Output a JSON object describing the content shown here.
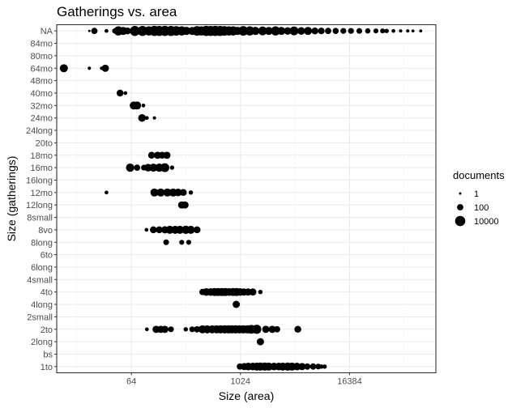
{
  "chart_data": {
    "type": "scatter",
    "title": "Gatherings vs. area",
    "xlabel": "Size (area)",
    "ylabel": "Size (gatherings)",
    "x_scale": "log2",
    "xlim": [
      9.6,
      147000
    ],
    "x_ticks": [
      64,
      1024,
      16384
    ],
    "x_tick_labels": [
      "64",
      "1024",
      "16384"
    ],
    "categories": [
      "1to",
      "bs",
      "2long",
      "2to",
      "2small",
      "4long",
      "4to",
      "4small",
      "6long",
      "6to",
      "8long",
      "8vo",
      "8small",
      "12long",
      "12mo",
      "16long",
      "16mo",
      "18mo",
      "20to",
      "24long",
      "24mo",
      "32mo",
      "40mo",
      "48mo",
      "64mo",
      "80mo",
      "84mo",
      "NA"
    ],
    "grid": true,
    "legend": {
      "title": "documents",
      "position": "right",
      "entries": [
        {
          "label": "1",
          "value": 1
        },
        {
          "label": "100",
          "value": 100
        },
        {
          "label": "10000",
          "value": 10000
        }
      ]
    },
    "point_color": "#000000",
    "points": [
      {
        "y": "NA",
        "x": 22,
        "n": 1
      },
      {
        "y": "NA",
        "x": 25,
        "n": 100
      },
      {
        "y": "NA",
        "x": 34,
        "n": 5
      },
      {
        "y": "NA",
        "x": 42,
        "n": 30
      },
      {
        "y": "NA",
        "x": 46,
        "n": 3000
      },
      {
        "y": "NA",
        "x": 52,
        "n": 800
      },
      {
        "y": "NA",
        "x": 58,
        "n": 200
      },
      {
        "y": "NA",
        "x": 70,
        "n": 8000
      },
      {
        "y": "NA",
        "x": 85,
        "n": 8000
      },
      {
        "y": "NA",
        "x": 100,
        "n": 3000
      },
      {
        "y": "NA",
        "x": 115,
        "n": 10000
      },
      {
        "y": "NA",
        "x": 130,
        "n": 8000
      },
      {
        "y": "NA",
        "x": 150,
        "n": 10000
      },
      {
        "y": "NA",
        "x": 175,
        "n": 8000
      },
      {
        "y": "NA",
        "x": 200,
        "n": 5000
      },
      {
        "y": "NA",
        "x": 230,
        "n": 3000
      },
      {
        "y": "NA",
        "x": 260,
        "n": 1000
      },
      {
        "y": "NA",
        "x": 300,
        "n": 800
      },
      {
        "y": "NA",
        "x": 340,
        "n": 5000
      },
      {
        "y": "NA",
        "x": 380,
        "n": 3000
      },
      {
        "y": "NA",
        "x": 430,
        "n": 10000
      },
      {
        "y": "NA",
        "x": 480,
        "n": 8000
      },
      {
        "y": "NA",
        "x": 540,
        "n": 10000
      },
      {
        "y": "NA",
        "x": 610,
        "n": 8000
      },
      {
        "y": "NA",
        "x": 680,
        "n": 5000
      },
      {
        "y": "NA",
        "x": 760,
        "n": 3000
      },
      {
        "y": "NA",
        "x": 850,
        "n": 3000
      },
      {
        "y": "NA",
        "x": 950,
        "n": 1000
      },
      {
        "y": "NA",
        "x": 1100,
        "n": 5000
      },
      {
        "y": "NA",
        "x": 1300,
        "n": 3000
      },
      {
        "y": "NA",
        "x": 1500,
        "n": 1000
      },
      {
        "y": "NA",
        "x": 1800,
        "n": 2000
      },
      {
        "y": "NA",
        "x": 2100,
        "n": 800
      },
      {
        "y": "NA",
        "x": 2500,
        "n": 3000
      },
      {
        "y": "NA",
        "x": 2900,
        "n": 800
      },
      {
        "y": "NA",
        "x": 3400,
        "n": 400
      },
      {
        "y": "NA",
        "x": 4000,
        "n": 2000
      },
      {
        "y": "NA",
        "x": 4800,
        "n": 500
      },
      {
        "y": "NA",
        "x": 5700,
        "n": 800
      },
      {
        "y": "NA",
        "x": 6800,
        "n": 200
      },
      {
        "y": "NA",
        "x": 8000,
        "n": 150
      },
      {
        "y": "NA",
        "x": 9500,
        "n": 100
      },
      {
        "y": "NA",
        "x": 11500,
        "n": 80
      },
      {
        "y": "NA",
        "x": 14000,
        "n": 60
      },
      {
        "y": "NA",
        "x": 17000,
        "n": 60
      },
      {
        "y": "NA",
        "x": 21000,
        "n": 50
      },
      {
        "y": "NA",
        "x": 26000,
        "n": 30
      },
      {
        "y": "NA",
        "x": 32000,
        "n": 20
      },
      {
        "y": "NA",
        "x": 38000,
        "n": 20
      },
      {
        "y": "NA",
        "x": 42000,
        "n": 10
      },
      {
        "y": "NA",
        "x": 50000,
        "n": 5
      },
      {
        "y": "NA",
        "x": 60000,
        "n": 3
      },
      {
        "y": "NA",
        "x": 72000,
        "n": 3
      },
      {
        "y": "NA",
        "x": 82000,
        "n": 2
      },
      {
        "y": "NA",
        "x": 100000,
        "n": 2
      },
      {
        "y": "64mo",
        "x": 11.5,
        "n": 800
      },
      {
        "y": "64mo",
        "x": 22,
        "n": 3
      },
      {
        "y": "64mo",
        "x": 30,
        "n": 3
      },
      {
        "y": "64mo",
        "x": 33,
        "n": 300
      },
      {
        "y": "40mo",
        "x": 48,
        "n": 200
      },
      {
        "y": "40mo",
        "x": 55,
        "n": 5
      },
      {
        "y": "32mo",
        "x": 68,
        "n": 800
      },
      {
        "y": "32mo",
        "x": 74,
        "n": 800
      },
      {
        "y": "32mo",
        "x": 87,
        "n": 5
      },
      {
        "y": "24mo",
        "x": 84,
        "n": 500
      },
      {
        "y": "24mo",
        "x": 95,
        "n": 5
      },
      {
        "y": "24mo",
        "x": 115,
        "n": 3
      },
      {
        "y": "18mo",
        "x": 107,
        "n": 200
      },
      {
        "y": "18mo",
        "x": 125,
        "n": 300
      },
      {
        "y": "18mo",
        "x": 140,
        "n": 200
      },
      {
        "y": "18mo",
        "x": 158,
        "n": 300
      },
      {
        "y": "16mo",
        "x": 62,
        "n": 1000
      },
      {
        "y": "16mo",
        "x": 74,
        "n": 100
      },
      {
        "y": "16mo",
        "x": 88,
        "n": 50
      },
      {
        "y": "16mo",
        "x": 98,
        "n": 500
      },
      {
        "y": "16mo",
        "x": 112,
        "n": 800
      },
      {
        "y": "16mo",
        "x": 130,
        "n": 1000
      },
      {
        "y": "16mo",
        "x": 150,
        "n": 2000
      },
      {
        "y": "16mo",
        "x": 180,
        "n": 10
      },
      {
        "y": "12mo",
        "x": 34,
        "n": 5
      },
      {
        "y": "12mo",
        "x": 115,
        "n": 800
      },
      {
        "y": "12mo",
        "x": 135,
        "n": 800
      },
      {
        "y": "12mo",
        "x": 160,
        "n": 800
      },
      {
        "y": "12mo",
        "x": 185,
        "n": 800
      },
      {
        "y": "12mo",
        "x": 210,
        "n": 500
      },
      {
        "y": "12mo",
        "x": 240,
        "n": 200
      },
      {
        "y": "12mo",
        "x": 290,
        "n": 10
      },
      {
        "y": "12long",
        "x": 230,
        "n": 300
      },
      {
        "y": "12long",
        "x": 250,
        "n": 300
      },
      {
        "y": "8vo",
        "x": 94,
        "n": 5
      },
      {
        "y": "8vo",
        "x": 112,
        "n": 200
      },
      {
        "y": "8vo",
        "x": 130,
        "n": 200
      },
      {
        "y": "8vo",
        "x": 150,
        "n": 300
      },
      {
        "y": "8vo",
        "x": 170,
        "n": 800
      },
      {
        "y": "8vo",
        "x": 195,
        "n": 800
      },
      {
        "y": "8vo",
        "x": 220,
        "n": 800
      },
      {
        "y": "8vo",
        "x": 255,
        "n": 1000
      },
      {
        "y": "8vo",
        "x": 290,
        "n": 800
      },
      {
        "y": "8vo",
        "x": 340,
        "n": 200
      },
      {
        "y": "8long",
        "x": 155,
        "n": 50
      },
      {
        "y": "8long",
        "x": 230,
        "n": 20
      },
      {
        "y": "8long",
        "x": 275,
        "n": 20
      },
      {
        "y": "4to",
        "x": 390,
        "n": 100
      },
      {
        "y": "4to",
        "x": 430,
        "n": 500
      },
      {
        "y": "4to",
        "x": 480,
        "n": 500
      },
      {
        "y": "4to",
        "x": 530,
        "n": 800
      },
      {
        "y": "4to",
        "x": 580,
        "n": 800
      },
      {
        "y": "4to",
        "x": 640,
        "n": 800
      },
      {
        "y": "4to",
        "x": 700,
        "n": 800
      },
      {
        "y": "4to",
        "x": 770,
        "n": 500
      },
      {
        "y": "4to",
        "x": 850,
        "n": 800
      },
      {
        "y": "4to",
        "x": 930,
        "n": 800
      },
      {
        "y": "4to",
        "x": 1020,
        "n": 500
      },
      {
        "y": "4to",
        "x": 1120,
        "n": 300
      },
      {
        "y": "4to",
        "x": 1240,
        "n": 300
      },
      {
        "y": "4to",
        "x": 1400,
        "n": 300
      },
      {
        "y": "4to",
        "x": 1700,
        "n": 10
      },
      {
        "y": "4long",
        "x": 920,
        "n": 300
      },
      {
        "y": "2to",
        "x": 95,
        "n": 5
      },
      {
        "y": "2to",
        "x": 120,
        "n": 300
      },
      {
        "y": "2to",
        "x": 135,
        "n": 300
      },
      {
        "y": "2to",
        "x": 150,
        "n": 300
      },
      {
        "y": "2to",
        "x": 175,
        "n": 50
      },
      {
        "y": "2to",
        "x": 255,
        "n": 10
      },
      {
        "y": "2to",
        "x": 300,
        "n": 50
      },
      {
        "y": "2to",
        "x": 340,
        "n": 100
      },
      {
        "y": "2to",
        "x": 390,
        "n": 800
      },
      {
        "y": "2to",
        "x": 440,
        "n": 800
      },
      {
        "y": "2to",
        "x": 500,
        "n": 800
      },
      {
        "y": "2to",
        "x": 560,
        "n": 800
      },
      {
        "y": "2to",
        "x": 620,
        "n": 1000
      },
      {
        "y": "2to",
        "x": 690,
        "n": 1000
      },
      {
        "y": "2to",
        "x": 760,
        "n": 1000
      },
      {
        "y": "2to",
        "x": 830,
        "n": 1000
      },
      {
        "y": "2to",
        "x": 910,
        "n": 1000
      },
      {
        "y": "2to",
        "x": 1000,
        "n": 1000
      },
      {
        "y": "2to",
        "x": 1100,
        "n": 1000
      },
      {
        "y": "2to",
        "x": 1220,
        "n": 1000
      },
      {
        "y": "2to",
        "x": 1350,
        "n": 2000
      },
      {
        "y": "2to",
        "x": 1550,
        "n": 3000
      },
      {
        "y": "2to",
        "x": 1950,
        "n": 300
      },
      {
        "y": "2to",
        "x": 2300,
        "n": 300
      },
      {
        "y": "2to",
        "x": 2600,
        "n": 100
      },
      {
        "y": "2to",
        "x": 4400,
        "n": 200
      },
      {
        "y": "2long",
        "x": 1700,
        "n": 300
      },
      {
        "y": "1to",
        "x": 1010,
        "n": 100
      },
      {
        "y": "1to",
        "x": 1130,
        "n": 300
      },
      {
        "y": "1to",
        "x": 1250,
        "n": 500
      },
      {
        "y": "1to",
        "x": 1400,
        "n": 500
      },
      {
        "y": "1to",
        "x": 1550,
        "n": 800
      },
      {
        "y": "1to",
        "x": 1700,
        "n": 1000
      },
      {
        "y": "1to",
        "x": 1900,
        "n": 1000
      },
      {
        "y": "1to",
        "x": 2100,
        "n": 800
      },
      {
        "y": "1to",
        "x": 2400,
        "n": 500
      },
      {
        "y": "1to",
        "x": 2700,
        "n": 500
      },
      {
        "y": "1to",
        "x": 3000,
        "n": 800
      },
      {
        "y": "1to",
        "x": 3400,
        "n": 1000
      },
      {
        "y": "1to",
        "x": 3800,
        "n": 800
      },
      {
        "y": "1to",
        "x": 4300,
        "n": 500
      },
      {
        "y": "1to",
        "x": 4900,
        "n": 300
      },
      {
        "y": "1to",
        "x": 5600,
        "n": 100
      },
      {
        "y": "1to",
        "x": 6500,
        "n": 100
      },
      {
        "y": "1to",
        "x": 7400,
        "n": 50
      },
      {
        "y": "1to",
        "x": 8000,
        "n": 10
      },
      {
        "y": "1to",
        "x": 8700,
        "n": 10
      }
    ]
  }
}
